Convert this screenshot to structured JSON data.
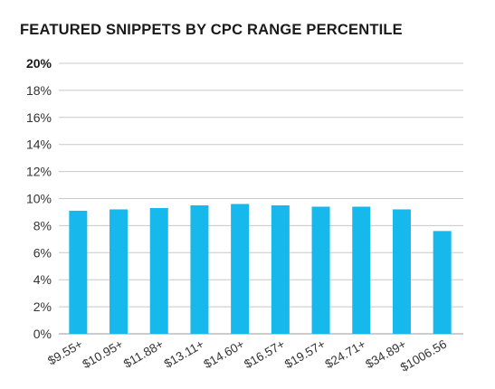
{
  "chart_data": {
    "type": "bar",
    "title": "FEATURED SNIPPETS BY CPC RANGE PERCENTILE",
    "categories": [
      "$9.55+",
      "$10.95+",
      "$11.88+",
      "$13.11+",
      "$14.60+",
      "$16.57+",
      "$19.57+",
      "$24.71+",
      "$34.89+",
      "$1006.56"
    ],
    "values": [
      9.1,
      9.2,
      9.3,
      9.5,
      9.6,
      9.5,
      9.4,
      9.4,
      9.2,
      7.6
    ],
    "ylim": [
      0,
      20
    ],
    "yticks": [
      "0%",
      "2%",
      "4%",
      "6%",
      "8%",
      "10%",
      "12%",
      "14%",
      "16%",
      "18%",
      "20%"
    ],
    "xlabel": "",
    "ylabel": "",
    "grid": true,
    "bar_color": "#17b8ec",
    "grid_color": "#c8c8c8"
  }
}
